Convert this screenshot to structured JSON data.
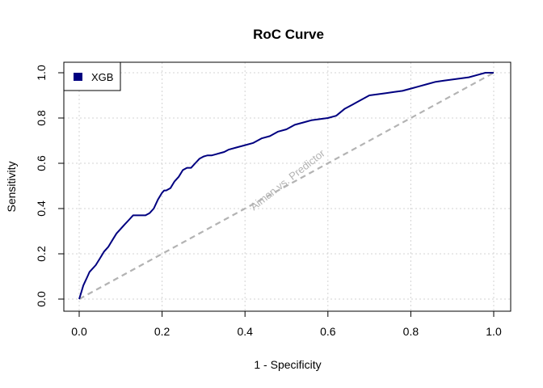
{
  "chart_data": {
    "type": "line",
    "title": "RoC Curve",
    "xlabel": "1 - Specificity",
    "ylabel": "Sensitivity",
    "xlim": [
      0,
      1
    ],
    "ylim": [
      0,
      1
    ],
    "xticks": [
      "0.0",
      "0.2",
      "0.4",
      "0.6",
      "0.8",
      "1.0"
    ],
    "yticks": [
      "0.0",
      "0.2",
      "0.4",
      "0.6",
      "0.8",
      "1.0"
    ],
    "grid": true,
    "legend_position": "top-left",
    "series": [
      {
        "name": "XGB",
        "color": "#000080",
        "x": [
          0,
          0.005,
          0.01,
          0.015,
          0.02,
          0.025,
          0.03,
          0.04,
          0.05,
          0.06,
          0.065,
          0.07,
          0.08,
          0.09,
          0.1,
          0.11,
          0.12,
          0.13,
          0.14,
          0.15,
          0.16,
          0.17,
          0.18,
          0.19,
          0.2,
          0.205,
          0.21,
          0.22,
          0.23,
          0.24,
          0.25,
          0.26,
          0.27,
          0.28,
          0.29,
          0.3,
          0.31,
          0.32,
          0.33,
          0.34,
          0.35,
          0.36,
          0.38,
          0.4,
          0.42,
          0.44,
          0.46,
          0.48,
          0.5,
          0.52,
          0.54,
          0.56,
          0.58,
          0.6,
          0.62,
          0.64,
          0.66,
          0.68,
          0.7,
          0.72,
          0.74,
          0.76,
          0.78,
          0.8,
          0.82,
          0.84,
          0.86,
          0.88,
          0.9,
          0.92,
          0.94,
          0.96,
          0.98,
          1.0
        ],
        "y": [
          0,
          0.03,
          0.06,
          0.08,
          0.1,
          0.12,
          0.13,
          0.15,
          0.18,
          0.21,
          0.22,
          0.23,
          0.26,
          0.29,
          0.31,
          0.33,
          0.35,
          0.37,
          0.37,
          0.37,
          0.37,
          0.38,
          0.4,
          0.44,
          0.47,
          0.48,
          0.48,
          0.49,
          0.52,
          0.54,
          0.57,
          0.58,
          0.58,
          0.6,
          0.62,
          0.63,
          0.635,
          0.635,
          0.64,
          0.645,
          0.65,
          0.66,
          0.67,
          0.68,
          0.69,
          0.71,
          0.72,
          0.74,
          0.75,
          0.77,
          0.78,
          0.79,
          0.795,
          0.8,
          0.81,
          0.84,
          0.86,
          0.88,
          0.9,
          0.905,
          0.91,
          0.915,
          0.92,
          0.93,
          0.94,
          0.95,
          0.96,
          0.965,
          0.97,
          0.975,
          0.98,
          0.99,
          1.0,
          1.0
        ]
      },
      {
        "x": [
          0,
          1
        ],
        "y": [
          0,
          1
        ],
        "color": "#b3b3b3",
        "dashed": true
      }
    ],
    "annotations": [
      {
        "text": "Aiman vs. Predictor",
        "x": 0.5,
        "y": 0.5,
        "color": "#b3b3b3"
      }
    ]
  }
}
